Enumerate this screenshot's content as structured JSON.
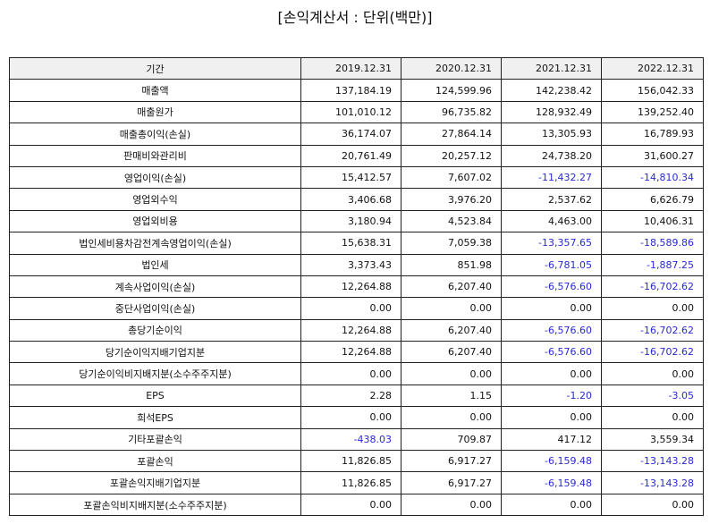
{
  "title": "[손익계산서 : 단위(백만)]",
  "table": {
    "header": [
      "기간",
      "2019.12.31",
      "2020.12.31",
      "2021.12.31",
      "2022.12.31"
    ],
    "rows": [
      [
        "매출액",
        "137,184.19",
        "124,599.96",
        "142,238.42",
        "156,042.33"
      ],
      [
        "매출원가",
        "101,010.12",
        "96,735.82",
        "128,932.49",
        "139,252.40"
      ],
      [
        "매출총이익(손실)",
        "36,174.07",
        "27,864.14",
        "13,305.93",
        "16,789.93"
      ],
      [
        "판매비와관리비",
        "20,761.49",
        "20,257.12",
        "24,738.20",
        "31,600.27"
      ],
      [
        "영업이익(손실)",
        "15,412.57",
        "7,607.02",
        "-11,432.27",
        "-14,810.34"
      ],
      [
        "영업외수익",
        "3,406.68",
        "3,976.20",
        "2,537.62",
        "6,626.79"
      ],
      [
        "영업외비용",
        "3,180.94",
        "4,523.84",
        "4,463.00",
        "10,406.31"
      ],
      [
        "법인세비용차감전계속영업이익(손실)",
        "15,638.31",
        "7,059.38",
        "-13,357.65",
        "-18,589.86"
      ],
      [
        "법인세",
        "3,373.43",
        "851.98",
        "-6,781.05",
        "-1,887.25"
      ],
      [
        "계속사업이익(손실)",
        "12,264.88",
        "6,207.40",
        "-6,576.60",
        "-16,702.62"
      ],
      [
        "중단사업이익(손실)",
        "0.00",
        "0.00",
        "0.00",
        "0.00"
      ],
      [
        "총당기순이익",
        "12,264.88",
        "6,207.40",
        "-6,576.60",
        "-16,702.62"
      ],
      [
        "당기순이익지배기업지분",
        "12,264.88",
        "6,207.40",
        "-6,576.60",
        "-16,702.62"
      ],
      [
        "당기순이익비지배지분(소수주주지분)",
        "0.00",
        "0.00",
        "0.00",
        "0.00"
      ],
      [
        "EPS",
        "2.28",
        "1.15",
        "-1.20",
        "-3.05"
      ],
      [
        "희석EPS",
        "0.00",
        "0.00",
        "0.00",
        "0.00"
      ],
      [
        "기타포괄손익",
        "-438.03",
        "709.87",
        "417.12",
        "3,559.34"
      ],
      [
        "포괄손익",
        "11,826.85",
        "6,917.27",
        "-6,159.48",
        "-13,143.28"
      ],
      [
        "포괄손익지배기업지분",
        "11,826.85",
        "6,917.27",
        "-6,159.48",
        "-13,143.28"
      ],
      [
        "포괄손익비지배지분(소수주주지분)",
        "0.00",
        "0.00",
        "0.00",
        "0.00"
      ]
    ]
  }
}
